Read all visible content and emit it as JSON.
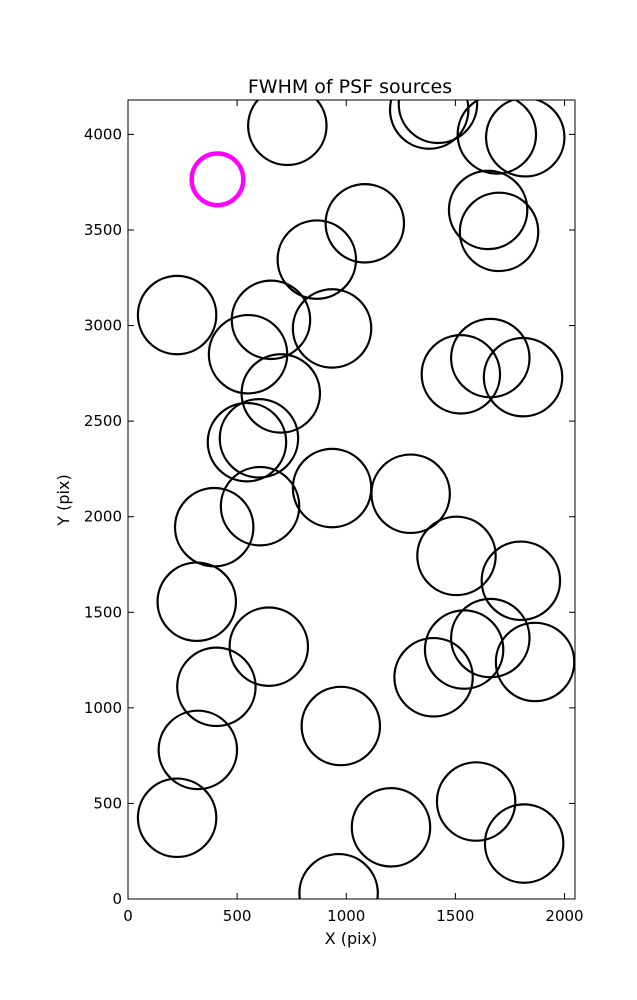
{
  "chart_data": {
    "type": "scatter",
    "title": "FWHM of PSF sources",
    "xlabel": "X (pix)",
    "ylabel": "Y (pix)",
    "xlim": [
      0,
      2048
    ],
    "ylim": [
      0,
      4180
    ],
    "xticks": [
      0,
      500,
      1000,
      1500,
      2000
    ],
    "yticks": [
      0,
      500,
      1000,
      1500,
      2000,
      2500,
      3000,
      3500,
      4000
    ],
    "grid": false,
    "legend": "none",
    "colors": {
      "source": "#000000",
      "highlight": "#ff00ff"
    },
    "sources": [
      {
        "x": 730,
        "y": 4045,
        "fwhm_radius": 205
      },
      {
        "x": 1380,
        "y": 4130,
        "fwhm_radius": 205
      },
      {
        "x": 1420,
        "y": 4160,
        "fwhm_radius": 205
      },
      {
        "x": 1690,
        "y": 4000,
        "fwhm_radius": 205
      },
      {
        "x": 1820,
        "y": 3985,
        "fwhm_radius": 205
      },
      {
        "x": 1085,
        "y": 3535,
        "fwhm_radius": 205
      },
      {
        "x": 865,
        "y": 3345,
        "fwhm_radius": 205
      },
      {
        "x": 1650,
        "y": 3605,
        "fwhm_radius": 205
      },
      {
        "x": 1700,
        "y": 3490,
        "fwhm_radius": 205
      },
      {
        "x": 225,
        "y": 3055,
        "fwhm_radius": 205
      },
      {
        "x": 655,
        "y": 3030,
        "fwhm_radius": 205
      },
      {
        "x": 935,
        "y": 2985,
        "fwhm_radius": 205
      },
      {
        "x": 550,
        "y": 2850,
        "fwhm_radius": 205
      },
      {
        "x": 1525,
        "y": 2745,
        "fwhm_radius": 205
      },
      {
        "x": 1660,
        "y": 2830,
        "fwhm_radius": 205
      },
      {
        "x": 1810,
        "y": 2730,
        "fwhm_radius": 205
      },
      {
        "x": 700,
        "y": 2645,
        "fwhm_radius": 205
      },
      {
        "x": 545,
        "y": 2390,
        "fwhm_radius": 205
      },
      {
        "x": 600,
        "y": 2410,
        "fwhm_radius": 205
      },
      {
        "x": 935,
        "y": 2150,
        "fwhm_radius": 205
      },
      {
        "x": 1295,
        "y": 2120,
        "fwhm_radius": 205
      },
      {
        "x": 395,
        "y": 1945,
        "fwhm_radius": 205
      },
      {
        "x": 605,
        "y": 2055,
        "fwhm_radius": 205
      },
      {
        "x": 1505,
        "y": 1795,
        "fwhm_radius": 205
      },
      {
        "x": 1800,
        "y": 1665,
        "fwhm_radius": 205
      },
      {
        "x": 315,
        "y": 1555,
        "fwhm_radius": 205
      },
      {
        "x": 645,
        "y": 1320,
        "fwhm_radius": 205
      },
      {
        "x": 1660,
        "y": 1365,
        "fwhm_radius": 205
      },
      {
        "x": 1865,
        "y": 1240,
        "fwhm_radius": 205
      },
      {
        "x": 1540,
        "y": 1305,
        "fwhm_radius": 205
      },
      {
        "x": 1400,
        "y": 1160,
        "fwhm_radius": 205
      },
      {
        "x": 405,
        "y": 1110,
        "fwhm_radius": 205
      },
      {
        "x": 975,
        "y": 905,
        "fwhm_radius": 205
      },
      {
        "x": 320,
        "y": 780,
        "fwhm_radius": 205
      },
      {
        "x": 225,
        "y": 425,
        "fwhm_radius": 205
      },
      {
        "x": 1205,
        "y": 375,
        "fwhm_radius": 205
      },
      {
        "x": 1595,
        "y": 510,
        "fwhm_radius": 205
      },
      {
        "x": 1815,
        "y": 290,
        "fwhm_radius": 205
      },
      {
        "x": 965,
        "y": 30,
        "fwhm_radius": 205
      }
    ],
    "highlight_source": {
      "x": 410,
      "y": 3765,
      "fwhm_radius": 135
    }
  }
}
